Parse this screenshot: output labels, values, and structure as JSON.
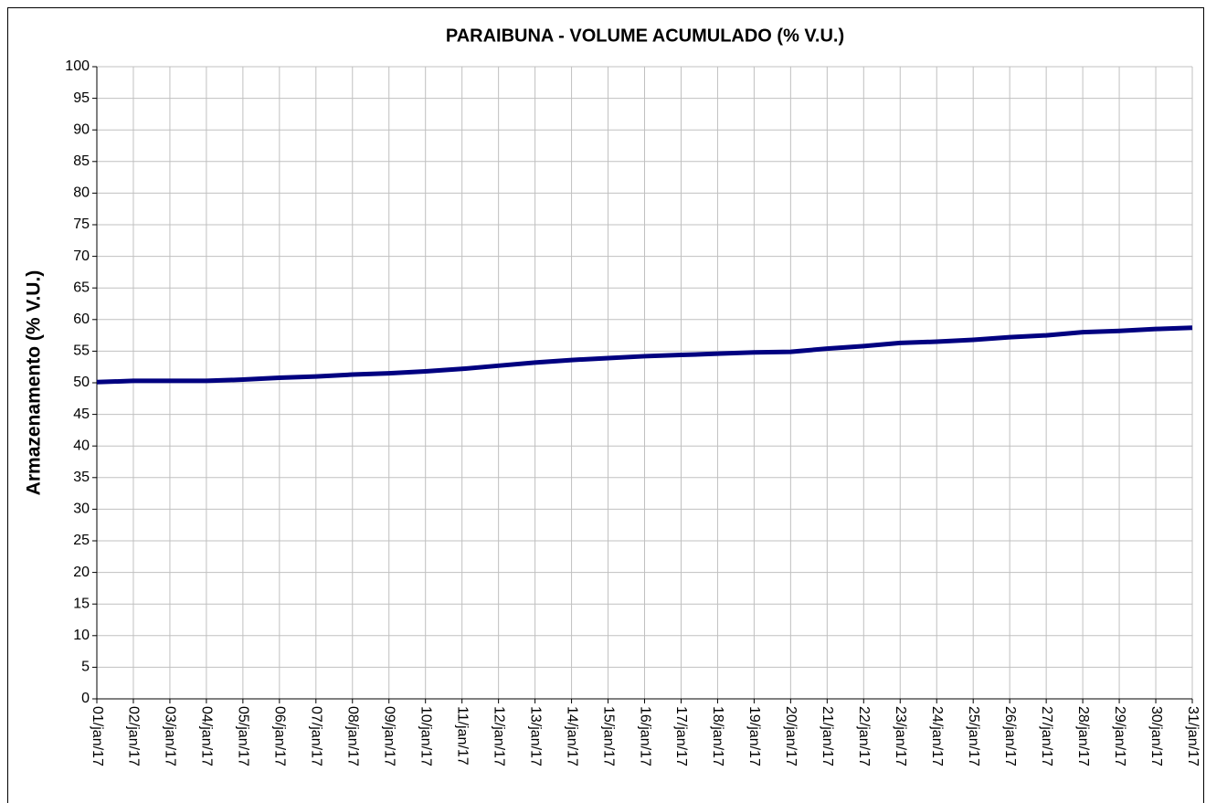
{
  "chart_data": {
    "type": "line",
    "title": "PARAIBUNA - VOLUME ACUMULADO (% V.U.)",
    "y_label": "Armazenamento (% V.U.)",
    "categories": [
      "01/jan/17",
      "02/jan/17",
      "03/jan/17",
      "04/jan/17",
      "05/jan/17",
      "06/jan/17",
      "07/jan/17",
      "08/jan/17",
      "09/jan/17",
      "10/jan/17",
      "11/jan/17",
      "12/jan/17",
      "13/jan/17",
      "14/jan/17",
      "15/jan/17",
      "16/jan/17",
      "17/jan/17",
      "18/jan/17",
      "19/jan/17",
      "20/jan/17",
      "21/jan/17",
      "22/jan/17",
      "23/jan/17",
      "24/jan/17",
      "25/jan/17",
      "26/jan/17",
      "27/jan/17",
      "28/jan/17",
      "29/jan/17",
      "30/jan/17",
      "31/jan/17"
    ],
    "values": [
      50.1,
      50.3,
      50.3,
      50.3,
      50.5,
      50.8,
      51.0,
      51.3,
      51.5,
      51.8,
      52.2,
      52.7,
      53.2,
      53.6,
      53.9,
      54.2,
      54.4,
      54.6,
      54.8,
      54.9,
      55.4,
      55.8,
      56.3,
      56.5,
      56.8,
      57.2,
      57.5,
      58.0,
      58.2,
      58.5,
      58.7
    ],
    "color": "#000080",
    "ylim": [
      0,
      100
    ],
    "yticks": [
      0,
      5,
      10,
      15,
      20,
      25,
      30,
      35,
      40,
      45,
      50,
      55,
      60,
      65,
      70,
      75,
      80,
      85,
      90,
      95,
      100
    ],
    "grid": true
  }
}
